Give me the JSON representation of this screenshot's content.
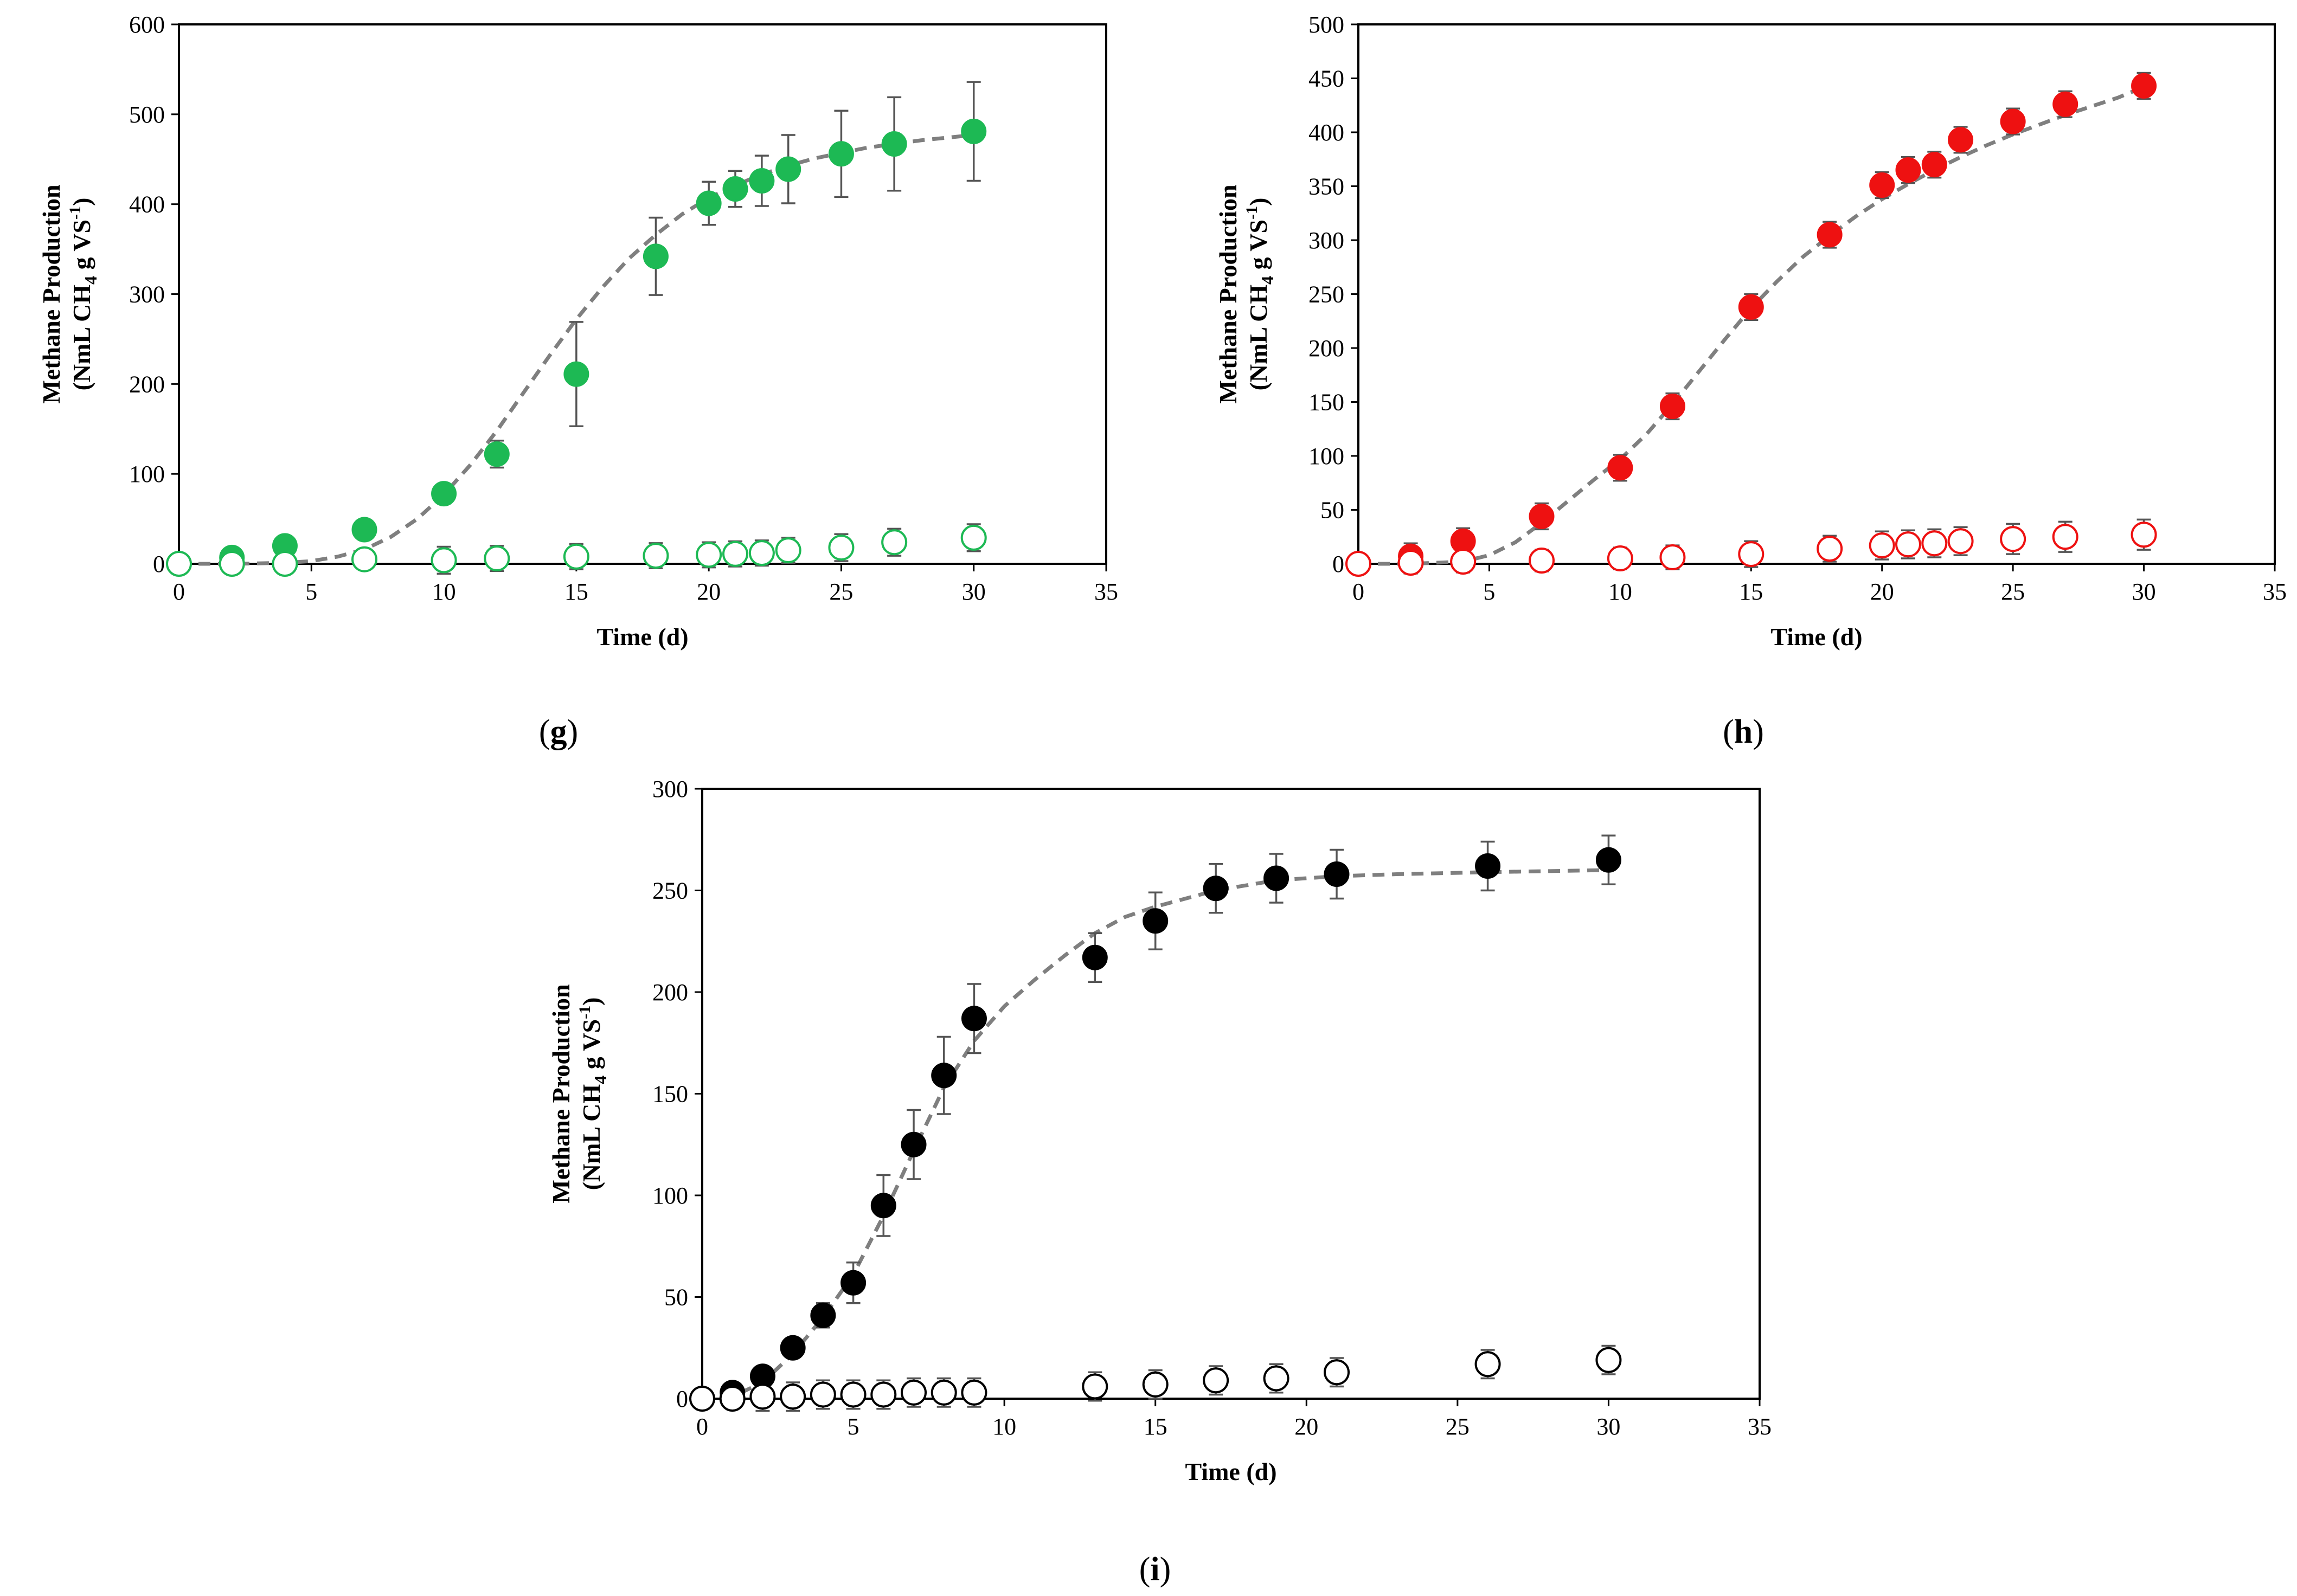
{
  "chart_data": [
    {
      "type": "scatter",
      "panel_label": "g",
      "xlabel": "Time (d)",
      "ylabel_line1": "Methane Production",
      "ylabel_line2_main": "(NmL CH",
      "ylabel_line2_sub": "4",
      "ylabel_line2_tail": " g VS",
      "ylabel_line2_sup": "-1",
      "ylabel_line2_end": ")",
      "xlim": [
        0,
        35
      ],
      "ylim": [
        0,
        600
      ],
      "xticks": [
        0,
        5,
        10,
        15,
        20,
        25,
        30,
        35
      ],
      "yticks": [
        0,
        100,
        200,
        300,
        400,
        500,
        600
      ],
      "color": "#1db954",
      "series": [
        {
          "style": "filled",
          "x": [
            0,
            2,
            4,
            7,
            10,
            12,
            15,
            18,
            20,
            21,
            22,
            23,
            25,
            27,
            30
          ],
          "y": [
            0,
            7,
            20,
            38,
            78,
            122,
            211,
            342,
            401,
            417,
            426,
            439,
            456,
            467,
            481
          ],
          "err": [
            0,
            0,
            0,
            0,
            0,
            15,
            58,
            43,
            24,
            20,
            28,
            38,
            48,
            52,
            55
          ]
        },
        {
          "style": "open",
          "x": [
            0,
            2,
            4,
            7,
            10,
            12,
            15,
            18,
            20,
            21,
            22,
            23,
            25,
            27,
            30
          ],
          "y": [
            0,
            0,
            0,
            5,
            4,
            6,
            8,
            9,
            10,
            11,
            12,
            15,
            18,
            24,
            29
          ],
          "err": [
            0,
            0,
            0,
            8,
            15,
            14,
            14,
            14,
            14,
            14,
            14,
            14,
            15,
            15,
            15
          ]
        }
      ],
      "fit": {
        "x": [
          0,
          2,
          4,
          5,
          6,
          7,
          8,
          9,
          10,
          11,
          12,
          13,
          14,
          15,
          16,
          17,
          18,
          19,
          20,
          21,
          22,
          23,
          24,
          25,
          26,
          27,
          28,
          29,
          30
        ],
        "y": [
          0,
          0,
          1,
          3,
          8,
          16,
          30,
          50,
          77,
          110,
          148,
          190,
          232,
          272,
          308,
          340,
          366,
          389,
          407,
          421,
          433,
          443,
          451,
          457,
          463,
          467,
          471,
          474,
          477
        ]
      }
    },
    {
      "type": "scatter",
      "panel_label": "h",
      "xlabel": "Time (d)",
      "ylabel_line1": "Methane Production",
      "ylabel_line2_main": "(NmL CH",
      "ylabel_line2_sub": "4",
      "ylabel_line2_tail": " g VS",
      "ylabel_line2_sup": "-1",
      "ylabel_line2_end": ")",
      "xlim": [
        0,
        35
      ],
      "ylim": [
        0,
        500
      ],
      "xticks": [
        0,
        5,
        10,
        15,
        20,
        25,
        30,
        35
      ],
      "yticks": [
        0,
        50,
        100,
        150,
        200,
        250,
        300,
        350,
        400,
        450,
        500
      ],
      "color": "#ee1111",
      "series": [
        {
          "style": "filled",
          "x": [
            0,
            2,
            4,
            7,
            10,
            12,
            15,
            18,
            20,
            21,
            22,
            23,
            25,
            27,
            30
          ],
          "y": [
            0,
            7,
            21,
            44,
            89,
            146,
            238,
            305,
            351,
            365,
            370,
            393,
            410,
            426,
            443
          ],
          "err": [
            0,
            12,
            12,
            12,
            12,
            12,
            12,
            12,
            12,
            12,
            12,
            12,
            12,
            12,
            12
          ]
        },
        {
          "style": "open",
          "x": [
            0,
            2,
            4,
            7,
            10,
            12,
            15,
            18,
            20,
            21,
            22,
            23,
            25,
            27,
            30
          ],
          "y": [
            0,
            1,
            2,
            3,
            5,
            6,
            9,
            14,
            17,
            18,
            19,
            21,
            23,
            25,
            27
          ],
          "err": [
            0,
            10,
            10,
            10,
            10,
            11,
            12,
            12,
            13,
            13,
            13,
            13,
            14,
            14,
            14
          ]
        }
      ],
      "fit": {
        "x": [
          0,
          2,
          4,
          5,
          6,
          7,
          8,
          9,
          10,
          11,
          12,
          13,
          14,
          15,
          16,
          17,
          18,
          19,
          20,
          21,
          22,
          23,
          24,
          25,
          26,
          27,
          28,
          29,
          30
        ],
        "y": [
          0,
          0,
          2,
          8,
          20,
          38,
          58,
          78,
          97,
          120,
          148,
          178,
          208,
          237,
          262,
          285,
          304,
          322,
          338,
          352,
          365,
          377,
          388,
          398,
          407,
          416,
          424,
          432,
          442
        ]
      }
    },
    {
      "type": "scatter",
      "panel_label": "i",
      "xlabel": "Time (d)",
      "ylabel_line1": "Methane Production",
      "ylabel_line2_main": "(NmL CH",
      "ylabel_line2_sub": "4",
      "ylabel_line2_tail": " g VS",
      "ylabel_line2_sup": "-1",
      "ylabel_line2_end": ")",
      "xlim": [
        0,
        35
      ],
      "ylim": [
        0,
        300
      ],
      "xticks": [
        0,
        5,
        10,
        15,
        20,
        25,
        30,
        35
      ],
      "yticks": [
        0,
        50,
        100,
        150,
        200,
        250,
        300
      ],
      "color": "#000000",
      "series": [
        {
          "style": "filled",
          "x": [
            0,
            1,
            2,
            3,
            4,
            5,
            6,
            7,
            8,
            9,
            13,
            15,
            17,
            19,
            21,
            26,
            30
          ],
          "y": [
            0,
            3,
            11,
            25,
            41,
            57,
            95,
            125,
            159,
            187,
            217,
            235,
            251,
            256,
            258,
            262,
            265
          ],
          "err": [
            0,
            0,
            0,
            0,
            6,
            10,
            15,
            17,
            19,
            17,
            12,
            14,
            12,
            12,
            12,
            12,
            12
          ]
        },
        {
          "style": "open",
          "x": [
            0,
            1,
            2,
            3,
            4,
            5,
            6,
            7,
            8,
            9,
            13,
            15,
            17,
            19,
            21,
            26,
            30
          ],
          "y": [
            0,
            0,
            1,
            1,
            2,
            2,
            2,
            3,
            3,
            3,
            6,
            7,
            9,
            10,
            13,
            17,
            19
          ],
          "err": [
            0,
            0,
            7,
            7,
            7,
            7,
            7,
            7,
            7,
            7,
            7,
            7,
            7,
            7,
            7,
            7,
            7
          ]
        }
      ],
      "fit": {
        "x": [
          0,
          1,
          2,
          3,
          4,
          5,
          6,
          7,
          8,
          9,
          10,
          11,
          12,
          13,
          14,
          15,
          17,
          19,
          21,
          23,
          26,
          30
        ],
        "y": [
          0,
          1,
          8,
          22,
          40,
          61,
          90,
          122,
          153,
          176,
          193,
          206,
          218,
          229,
          237,
          242,
          250,
          255,
          257,
          258,
          259,
          260
        ]
      }
    }
  ]
}
